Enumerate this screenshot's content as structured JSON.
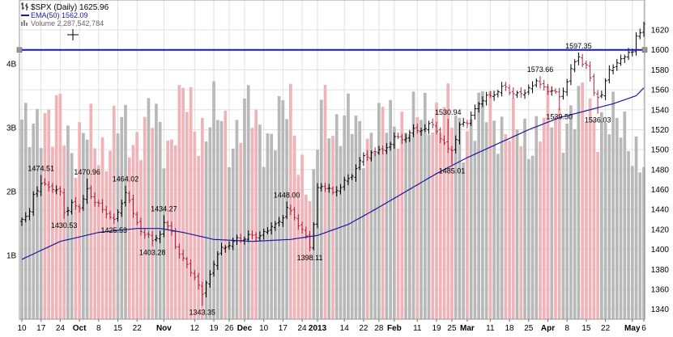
{
  "colors": {
    "up_bar": "#000000",
    "down_bar": "#b4233c",
    "ema_line": "#1a1aa0",
    "resistance_line": "#1414c8",
    "volume_up": "#b8b8b8",
    "volume_down": "#efb3b8",
    "grid": "#e0e0e0"
  },
  "chart_data": {
    "type": "ohlc-bar",
    "legend": {
      "symbol_icon": "candle-icon",
      "title": "$SPX (Daily) 1625.96",
      "ema_label": "EMA(50) 1562.09",
      "volume_label": "Volume 2,287,542,784"
    },
    "y_axis": {
      "range": [
        1330,
        1650
      ],
      "ticks": [
        "1340",
        "1360",
        "1380",
        "1400",
        "1420",
        "1440",
        "1460",
        "1480",
        "1500",
        "1520",
        "1540",
        "1560",
        "1580",
        "1600",
        "1620"
      ]
    },
    "volume_axis": {
      "range": [
        0,
        5
      ],
      "ticks": [
        "1B",
        "2B",
        "3B",
        "4B"
      ]
    },
    "x_axis": {
      "ticks": [
        {
          "label": "10",
          "d": 0
        },
        {
          "label": "17",
          "d": 5
        },
        {
          "label": "24",
          "d": 10
        },
        {
          "label": "Oct",
          "d": 15,
          "bold": true
        },
        {
          "label": "8",
          "d": 20
        },
        {
          "label": "15",
          "d": 25
        },
        {
          "label": "22",
          "d": 30
        },
        {
          "label": "Nov",
          "d": 37,
          "bold": true
        },
        {
          "label": "12",
          "d": 45
        },
        {
          "label": "19",
          "d": 50
        },
        {
          "label": "26",
          "d": 54
        },
        {
          "label": "Dec",
          "d": 58,
          "bold": true
        },
        {
          "label": "10",
          "d": 63
        },
        {
          "label": "17",
          "d": 68
        },
        {
          "label": "24",
          "d": 73
        },
        {
          "label": "2013",
          "d": 77,
          "bold": true
        },
        {
          "label": "14",
          "d": 84
        },
        {
          "label": "22",
          "d": 89
        },
        {
          "label": "28",
          "d": 93
        },
        {
          "label": "Feb",
          "d": 97,
          "bold": true
        },
        {
          "label": "11",
          "d": 103
        },
        {
          "label": "19",
          "d": 108
        },
        {
          "label": "25",
          "d": 112
        },
        {
          "label": "Mar",
          "d": 116,
          "bold": true
        },
        {
          "label": "11",
          "d": 122
        },
        {
          "label": "18",
          "d": 127
        },
        {
          "label": "25",
          "d": 132
        },
        {
          "label": "Apr",
          "d": 137,
          "bold": true
        },
        {
          "label": "8",
          "d": 142
        },
        {
          "label": "15",
          "d": 147
        },
        {
          "label": "22",
          "d": 152
        },
        {
          "label": "May",
          "d": 159,
          "bold": true
        },
        {
          "label": "6",
          "d": 162
        }
      ]
    },
    "resistance_level": 1600,
    "price_annotations": [
      {
        "label": "1474.51",
        "d": 5,
        "value": 1474.51,
        "pos": "above"
      },
      {
        "label": "1430.53",
        "d": 11,
        "value": 1430.53,
        "pos": "below"
      },
      {
        "label": "1470.96",
        "d": 17,
        "value": 1470.96,
        "pos": "above"
      },
      {
        "label": "1425.53",
        "d": 24,
        "value": 1425.53,
        "pos": "below"
      },
      {
        "label": "1464.02",
        "d": 27,
        "value": 1464.02,
        "pos": "above"
      },
      {
        "label": "1434.27",
        "d": 37,
        "value": 1434.27,
        "pos": "above"
      },
      {
        "label": "1403.28",
        "d": 34,
        "value": 1403.28,
        "pos": "below"
      },
      {
        "label": "1343.35",
        "d": 47,
        "value": 1343.35,
        "pos": "below"
      },
      {
        "label": "1448.00",
        "d": 69,
        "value": 1448.0,
        "pos": "above"
      },
      {
        "label": "1398.11",
        "d": 75,
        "value": 1398.11,
        "pos": "below"
      },
      {
        "label": "1530.94",
        "d": 111,
        "value": 1530.94,
        "pos": "above"
      },
      {
        "label": "1485.01",
        "d": 112,
        "value": 1485.01,
        "pos": "below"
      },
      {
        "label": "1573.66",
        "d": 135,
        "value": 1573.66,
        "pos": "above"
      },
      {
        "label": "1539.50",
        "d": 140,
        "value": 1539.5,
        "pos": "below"
      },
      {
        "label": "1597.35",
        "d": 145,
        "value": 1597.35,
        "pos": "above"
      },
      {
        "label": "1536.03",
        "d": 150,
        "value": 1536.03,
        "pos": "below"
      }
    ],
    "close_anchors": [
      [
        0,
        1430
      ],
      [
        1,
        1433
      ],
      [
        2,
        1438
      ],
      [
        3,
        1455
      ],
      [
        5,
        1466
      ],
      [
        8,
        1460
      ],
      [
        10,
        1458
      ],
      [
        11,
        1437
      ],
      [
        13,
        1447
      ],
      [
        15,
        1441
      ],
      [
        17,
        1461
      ],
      [
        19,
        1447
      ],
      [
        21,
        1440
      ],
      [
        24,
        1430
      ],
      [
        26,
        1446
      ],
      [
        27,
        1457
      ],
      [
        29,
        1436
      ],
      [
        31,
        1418
      ],
      [
        34,
        1409
      ],
      [
        36,
        1415
      ],
      [
        37,
        1427
      ],
      [
        39,
        1418
      ],
      [
        41,
        1395
      ],
      [
        43,
        1385
      ],
      [
        45,
        1372
      ],
      [
        47,
        1355
      ],
      [
        49,
        1375
      ],
      [
        51,
        1395
      ],
      [
        53,
        1402
      ],
      [
        55,
        1408
      ],
      [
        57,
        1409
      ],
      [
        59,
        1415
      ],
      [
        61,
        1412
      ],
      [
        63,
        1418
      ],
      [
        65,
        1423
      ],
      [
        67,
        1428
      ],
      [
        69,
        1442
      ],
      [
        71,
        1432
      ],
      [
        73,
        1420
      ],
      [
        75,
        1402
      ],
      [
        76,
        1425
      ],
      [
        77,
        1462
      ],
      [
        79,
        1461
      ],
      [
        81,
        1457
      ],
      [
        83,
        1462
      ],
      [
        85,
        1471
      ],
      [
        87,
        1481
      ],
      [
        89,
        1494
      ],
      [
        91,
        1497
      ],
      [
        93,
        1500
      ],
      [
        95,
        1502
      ],
      [
        97,
        1513
      ],
      [
        99,
        1510
      ],
      [
        101,
        1517
      ],
      [
        103,
        1519
      ],
      [
        105,
        1521
      ],
      [
        107,
        1525
      ],
      [
        109,
        1511
      ],
      [
        111,
        1501
      ],
      [
        112,
        1499
      ],
      [
        114,
        1525
      ],
      [
        116,
        1526
      ],
      [
        118,
        1541
      ],
      [
        120,
        1549
      ],
      [
        122,
        1554
      ],
      [
        124,
        1558
      ],
      [
        126,
        1563
      ],
      [
        128,
        1556
      ],
      [
        130,
        1556
      ],
      [
        132,
        1562
      ],
      [
        134,
        1569
      ],
      [
        136,
        1563
      ],
      [
        138,
        1559
      ],
      [
        140,
        1553
      ],
      [
        142,
        1568
      ],
      [
        144,
        1588
      ],
      [
        145,
        1593
      ],
      [
        147,
        1585
      ],
      [
        149,
        1557
      ],
      [
        151,
        1555
      ],
      [
        153,
        1580
      ],
      [
        155,
        1587
      ],
      [
        157,
        1593
      ],
      [
        159,
        1598
      ],
      [
        160,
        1614
      ],
      [
        161,
        1617
      ],
      [
        162,
        1626
      ]
    ],
    "ema_anchors": [
      [
        0,
        1390
      ],
      [
        10,
        1408
      ],
      [
        20,
        1417
      ],
      [
        30,
        1421
      ],
      [
        36,
        1421
      ],
      [
        42,
        1417
      ],
      [
        50,
        1410
      ],
      [
        60,
        1408
      ],
      [
        70,
        1410
      ],
      [
        77,
        1414
      ],
      [
        85,
        1425
      ],
      [
        92,
        1440
      ],
      [
        100,
        1458
      ],
      [
        108,
        1476
      ],
      [
        116,
        1492
      ],
      [
        124,
        1506
      ],
      [
        132,
        1520
      ],
      [
        140,
        1532
      ],
      [
        148,
        1540
      ],
      [
        154,
        1546
      ],
      [
        160,
        1554
      ],
      [
        162,
        1562
      ]
    ],
    "volume_anchors": [
      [
        0,
        2.9
      ],
      [
        4,
        3.3
      ],
      [
        8,
        2.8
      ],
      [
        10,
        3.4
      ],
      [
        14,
        2.6
      ],
      [
        18,
        2.9
      ],
      [
        22,
        2.7
      ],
      [
        26,
        3.0
      ],
      [
        30,
        2.9
      ],
      [
        34,
        3.1
      ],
      [
        38,
        2.8
      ],
      [
        42,
        3.4
      ],
      [
        46,
        3.0
      ],
      [
        50,
        3.2
      ],
      [
        54,
        2.8
      ],
      [
        58,
        3.3
      ],
      [
        62,
        2.9
      ],
      [
        66,
        3.0
      ],
      [
        70,
        3.3
      ],
      [
        74,
        2.2
      ],
      [
        76,
        1.8
      ],
      [
        78,
        3.4
      ],
      [
        82,
        3.1
      ],
      [
        86,
        3.0
      ],
      [
        90,
        2.9
      ],
      [
        94,
        3.0
      ],
      [
        98,
        3.2
      ],
      [
        102,
        3.0
      ],
      [
        106,
        3.3
      ],
      [
        110,
        3.2
      ],
      [
        114,
        3.0
      ],
      [
        118,
        3.1
      ],
      [
        122,
        3.3
      ],
      [
        126,
        3.0
      ],
      [
        130,
        2.8
      ],
      [
        134,
        3.0
      ],
      [
        138,
        3.1
      ],
      [
        142,
        3.2
      ],
      [
        146,
        3.3
      ],
      [
        150,
        3.2
      ],
      [
        154,
        3.0
      ],
      [
        158,
        3.0
      ],
      [
        162,
        2.3
      ]
    ]
  }
}
